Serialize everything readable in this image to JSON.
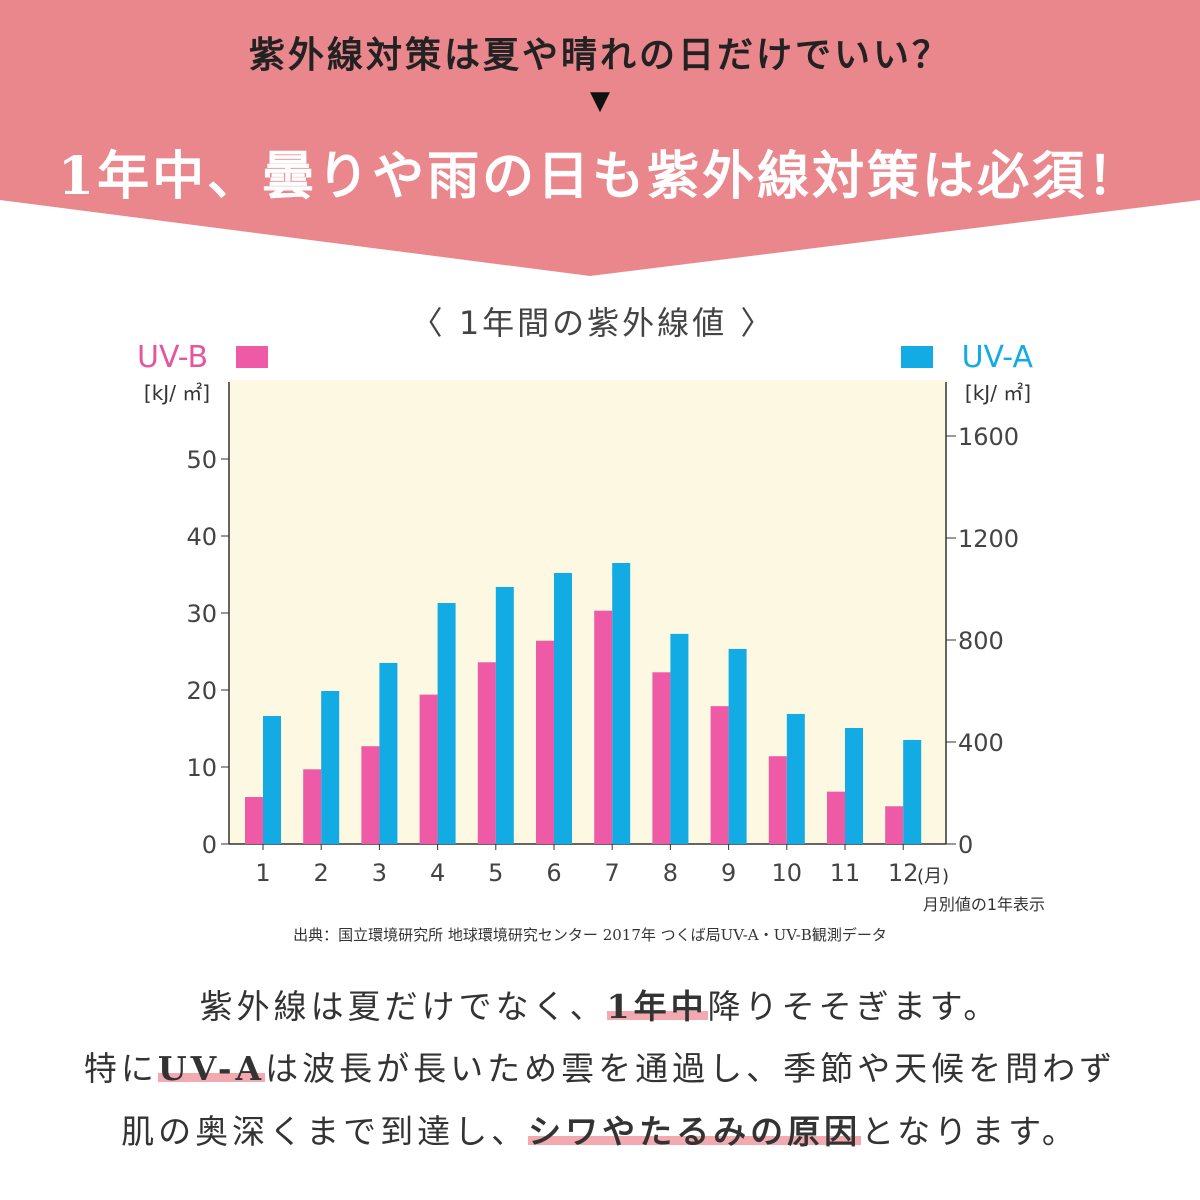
{
  "header": {
    "question": "紫外線対策は夏や晴れの日だけでいい？",
    "arrow": "▼",
    "answer": "1年中、曇りや雨の日も紫外線対策は必須！",
    "bg_color": "#E9878D"
  },
  "chart_data": {
    "type": "bar",
    "title": "〈 1年間の紫外線値 〉",
    "categories": [
      "1",
      "2",
      "3",
      "4",
      "5",
      "6",
      "7",
      "8",
      "9",
      "10",
      "11",
      "12"
    ],
    "x_unit": "(月)",
    "note": "月別値の1年表示",
    "source": "出典：国立環境研究所 地球環境研究センター 2017年 つくば局UV-A・UV-B観測データ",
    "left_axis": {
      "label": "[kJ/ ㎡]",
      "ylim": [
        0,
        60
      ],
      "ticks": [
        0,
        10,
        20,
        30,
        40,
        50
      ]
    },
    "right_axis": {
      "label": "[kJ/ ㎡]",
      "ylim": [
        0,
        1800
      ],
      "ticks": [
        0,
        400,
        800,
        1200,
        1600
      ]
    },
    "series": [
      {
        "name": "UV-B",
        "axis": "left",
        "color": "#EE5AA6",
        "values": [
          6.1,
          9.7,
          12.7,
          19.4,
          23.6,
          26.4,
          30.3,
          22.3,
          17.9,
          11.4,
          6.8,
          4.9
        ]
      },
      {
        "name": "UV-A",
        "axis": "right",
        "color": "#12ABE3",
        "values": [
          502,
          600,
          710,
          945,
          1008,
          1063,
          1102,
          824,
          765,
          510,
          455,
          408
        ]
      }
    ],
    "plot_bg": "#FDF8E2",
    "grid": false
  },
  "body": {
    "line1": {
      "pre": "紫外線は夏だけでなく、",
      "hl": "1年中",
      "post": "降りそそぎます。"
    },
    "line2": {
      "pre": "特に",
      "hl": "UV-A",
      "post": "は波長が長いため雲を通過し、季節や天候を問わず"
    },
    "line3": {
      "pre": "肌の奥深くまで到達し、",
      "hl": "シワやたるみの原因",
      "post": "となります。"
    }
  }
}
